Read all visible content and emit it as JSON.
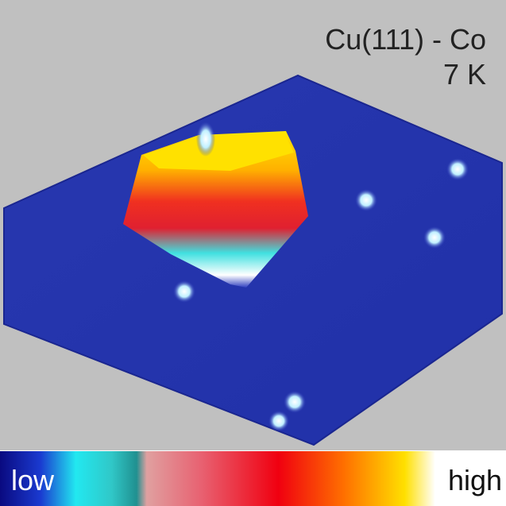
{
  "label": {
    "sample": "Cu(111) - Co",
    "temperature": "7 K"
  },
  "colorbar": {
    "low": "low",
    "high": "high"
  }
}
